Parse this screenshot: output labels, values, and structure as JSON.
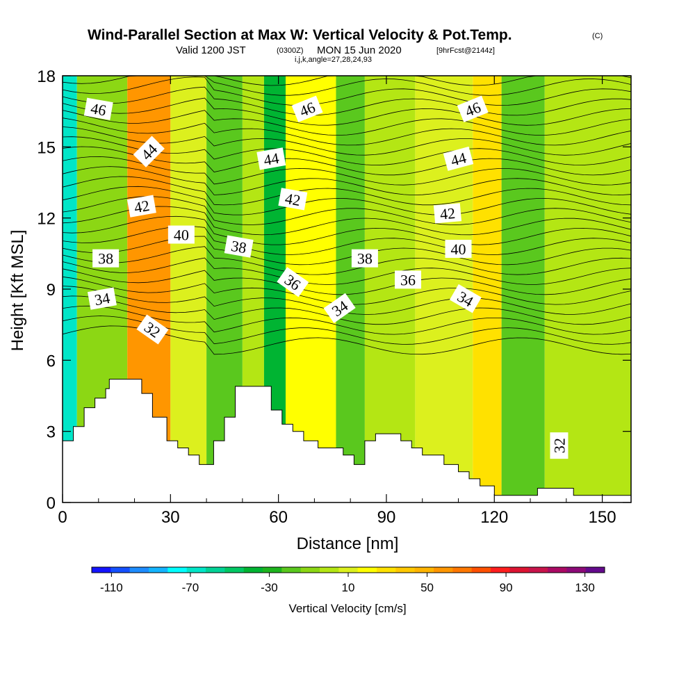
{
  "header": {
    "title_main": "Wind-Parallel Section at Max W: Vertical Velocity & Pot.Temp.",
    "title_mark": "(C)",
    "valid_a": "Valid 1200 JST",
    "valid_b": "(0300Z)",
    "valid_c": "MON 15 Jun 2020",
    "valid_d": "[9hrFcst@2144z]",
    "indices": "i,j,k,angle=27,28,24,93"
  },
  "chart_data": {
    "type": "heatmap",
    "xlabel": "Distance [nm]",
    "ylabel": "Height [Kft MSL]",
    "xlim": [
      0,
      158
    ],
    "ylim": [
      0,
      18
    ],
    "x_ticks": [
      "0",
      "30",
      "60",
      "90",
      "120",
      "150"
    ],
    "y_ticks": [
      "0",
      "3",
      "6",
      "9",
      "12",
      "15",
      "18"
    ],
    "field": "Vertical Velocity",
    "colorbar": {
      "label": "Vertical Velocity [cm/s]",
      "tick_labels": [
        "-110",
        "-70",
        "-30",
        "10",
        "50",
        "90",
        "130"
      ],
      "levels": [
        -120,
        -110,
        -100,
        -90,
        -80,
        -70,
        -60,
        -50,
        -40,
        -30,
        -20,
        -10,
        0,
        10,
        20,
        30,
        40,
        50,
        60,
        70,
        80,
        90,
        100,
        110,
        120,
        130,
        140
      ],
      "colors": [
        "#1414ff",
        "#1450ff",
        "#1e8cff",
        "#14b4ff",
        "#00ffff",
        "#00e6c8",
        "#00d296",
        "#00c864",
        "#00b432",
        "#1eb41e",
        "#5ac81e",
        "#8cd714",
        "#b4e614",
        "#dcf01e",
        "#ffff00",
        "#ffe100",
        "#ffc800",
        "#ffb400",
        "#ff9600",
        "#ff7800",
        "#ff5000",
        "#ff1e1e",
        "#dc1432",
        "#c8144b",
        "#aa0a64",
        "#8c0a78",
        "#640a8c"
      ]
    },
    "theta_contour_labels": [
      "46",
      "46",
      "46",
      "44",
      "44",
      "44",
      "42",
      "42",
      "42",
      "40",
      "40",
      "38",
      "38",
      "38",
      "36",
      "36",
      "34",
      "34",
      "34",
      "32",
      "32"
    ],
    "cells": [
      {
        "x0": 0,
        "x1": 4,
        "w": -70
      },
      {
        "x0": 4,
        "x1": 18,
        "w": -10
      },
      {
        "x0": 18,
        "x1": 30,
        "w": 60
      },
      {
        "x0": 30,
        "x1": 40,
        "w": 10
      },
      {
        "x0": 40,
        "x1": 50,
        "w": -20
      },
      {
        "x0": 50,
        "x1": 56,
        "w": 0
      },
      {
        "x0": 56,
        "x1": 62,
        "w": -40
      },
      {
        "x0": 62,
        "x1": 76,
        "w": 20
      },
      {
        "x0": 76,
        "x1": 84,
        "w": -20
      },
      {
        "x0": 84,
        "x1": 98,
        "w": 0
      },
      {
        "x0": 98,
        "x1": 114,
        "w": 10
      },
      {
        "x0": 114,
        "x1": 122,
        "w": 30
      },
      {
        "x0": 122,
        "x1": 134,
        "w": -20
      },
      {
        "x0": 134,
        "x1": 158,
        "w": 0
      }
    ],
    "terrain": [
      [
        0,
        2.6
      ],
      [
        3,
        2.6
      ],
      [
        3,
        3.2
      ],
      [
        6,
        3.2
      ],
      [
        6,
        4.0
      ],
      [
        9,
        4.0
      ],
      [
        9,
        4.4
      ],
      [
        12,
        4.4
      ],
      [
        12,
        4.8
      ],
      [
        13,
        4.8
      ],
      [
        13,
        5.2
      ],
      [
        22,
        5.2
      ],
      [
        22,
        4.6
      ],
      [
        25,
        4.6
      ],
      [
        25,
        3.6
      ],
      [
        29,
        3.6
      ],
      [
        29,
        2.6
      ],
      [
        32,
        2.6
      ],
      [
        32,
        2.3
      ],
      [
        35,
        2.3
      ],
      [
        35,
        2.0
      ],
      [
        38,
        2.0
      ],
      [
        38,
        1.6
      ],
      [
        42,
        1.6
      ],
      [
        42,
        2.6
      ],
      [
        45,
        2.6
      ],
      [
        45,
        3.6
      ],
      [
        48,
        3.6
      ],
      [
        48,
        4.9
      ],
      [
        58,
        4.9
      ],
      [
        58,
        3.9
      ],
      [
        61,
        3.9
      ],
      [
        61,
        3.3
      ],
      [
        64,
        3.3
      ],
      [
        64,
        3.0
      ],
      [
        67,
        3.0
      ],
      [
        67,
        2.6
      ],
      [
        71,
        2.6
      ],
      [
        71,
        2.3
      ],
      [
        78,
        2.3
      ],
      [
        78,
        2.0
      ],
      [
        81,
        2.0
      ],
      [
        81,
        1.6
      ],
      [
        84,
        1.6
      ],
      [
        84,
        2.6
      ],
      [
        87,
        2.6
      ],
      [
        87,
        2.9
      ],
      [
        94,
        2.9
      ],
      [
        94,
        2.6
      ],
      [
        97,
        2.6
      ],
      [
        97,
        2.3
      ],
      [
        100,
        2.3
      ],
      [
        100,
        2.0
      ],
      [
        106,
        2.0
      ],
      [
        106,
        1.6
      ],
      [
        110,
        1.6
      ],
      [
        110,
        1.3
      ],
      [
        113,
        1.3
      ],
      [
        113,
        1.0
      ],
      [
        116,
        1.0
      ],
      [
        116,
        0.7
      ],
      [
        120,
        0.7
      ],
      [
        120,
        0.3
      ],
      [
        132,
        0.3
      ],
      [
        132,
        0.6
      ],
      [
        142,
        0.6
      ],
      [
        142,
        0.3
      ],
      [
        158,
        0.3
      ]
    ]
  }
}
